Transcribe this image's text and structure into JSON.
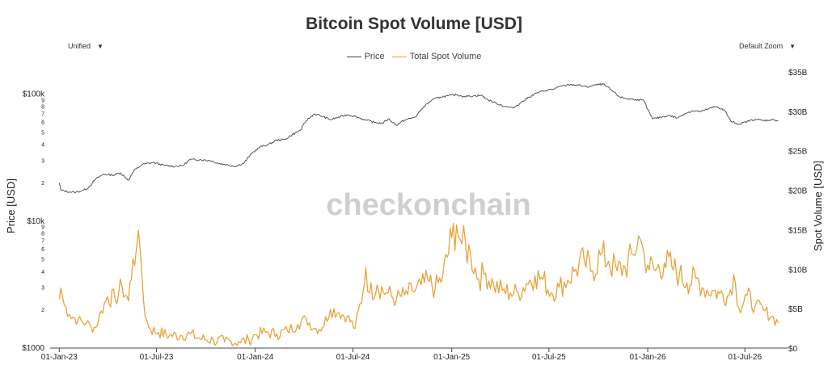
{
  "header": {
    "title": "Bitcoin Spot Volume [USD]",
    "left_dropdown": "Unified",
    "right_dropdown": "Default Zoom"
  },
  "watermark": "checkonchain",
  "colors": {
    "price": "#444444",
    "volume": "#e8a33a",
    "axis": "#444444"
  },
  "chart_data": {
    "type": "line",
    "title": "Bitcoin Spot Volume [USD]",
    "legend": {
      "placement": "top-center",
      "entries": [
        "Price",
        "Total Spot Volume"
      ]
    },
    "grid": false,
    "x_axis": {
      "type": "date",
      "range": [
        "2022-12-15",
        "2026-09-20"
      ],
      "tick_labels": [
        "01-Jan-23",
        "01-Jul-23",
        "01-Jan-24",
        "01-Jul-24",
        "01-Jan-25",
        "01-Jul-25",
        "01-Jan-26",
        "01-Jul-26"
      ],
      "tick_dates": [
        "2023-01-01",
        "2023-07-01",
        "2024-01-01",
        "2024-07-01",
        "2025-01-01",
        "2025-07-01",
        "2026-01-01",
        "2026-07-01"
      ]
    },
    "y_left": {
      "label": "Price [USD]",
      "scale": "log",
      "range": [
        1000,
        150000
      ],
      "major_ticks": [
        {
          "v": 1000,
          "t": "$1000"
        },
        {
          "v": 10000,
          "t": "$10k"
        },
        {
          "v": 100000,
          "t": "$100k"
        }
      ],
      "minor_ticks": [
        {
          "v": 2000,
          "t": "2"
        },
        {
          "v": 3000,
          "t": "3"
        },
        {
          "v": 4000,
          "t": "4"
        },
        {
          "v": 5000,
          "t": "5"
        },
        {
          "v": 6000,
          "t": "6"
        },
        {
          "v": 7000,
          "t": "7"
        },
        {
          "v": 8000,
          "t": "8"
        },
        {
          "v": 9000,
          "t": "9"
        },
        {
          "v": 20000,
          "t": "2"
        },
        {
          "v": 30000,
          "t": "3"
        },
        {
          "v": 40000,
          "t": "4"
        },
        {
          "v": 50000,
          "t": "5"
        },
        {
          "v": 60000,
          "t": "6"
        },
        {
          "v": 70000,
          "t": "7"
        },
        {
          "v": 80000,
          "t": "8"
        },
        {
          "v": 90000,
          "t": "9"
        }
      ]
    },
    "y_right": {
      "label": "Spot Volume [USD]",
      "scale": "linear",
      "range": [
        0,
        35
      ],
      "ticks": [
        {
          "v": 0,
          "t": "$0"
        },
        {
          "v": 5,
          "t": "$5B"
        },
        {
          "v": 10,
          "t": "$10B"
        },
        {
          "v": 15,
          "t": "$15B"
        },
        {
          "v": 20,
          "t": "$20B"
        },
        {
          "v": 25,
          "t": "$25B"
        },
        {
          "v": 30,
          "t": "$30B"
        },
        {
          "v": 35,
          "t": "$35B"
        }
      ]
    },
    "series": [
      {
        "name": "Price",
        "axis": "left",
        "unit": "USD",
        "points": [
          [
            "2023-01-01",
            20000
          ],
          [
            "2023-01-04",
            17500
          ],
          [
            "2023-01-20",
            17000
          ],
          [
            "2023-02-01",
            16900
          ],
          [
            "2023-02-15",
            17500
          ],
          [
            "2023-02-25",
            18500
          ],
          [
            "2023-03-10",
            21500
          ],
          [
            "2023-03-25",
            23500
          ],
          [
            "2023-04-10",
            23000
          ],
          [
            "2023-04-25",
            24000
          ],
          [
            "2023-05-10",
            21000
          ],
          [
            "2023-05-20",
            25000
          ],
          [
            "2023-06-05",
            28000
          ],
          [
            "2023-06-25",
            29000
          ],
          [
            "2023-07-15",
            27500
          ],
          [
            "2023-08-05",
            27000
          ],
          [
            "2023-08-20",
            27500
          ],
          [
            "2023-09-01",
            30500
          ],
          [
            "2023-09-20",
            30500
          ],
          [
            "2023-10-10",
            30000
          ],
          [
            "2023-10-25",
            28500
          ],
          [
            "2023-11-05",
            28000
          ],
          [
            "2023-11-25",
            27000
          ],
          [
            "2023-12-10",
            28500
          ],
          [
            "2023-12-25",
            34000
          ],
          [
            "2024-01-10",
            38500
          ],
          [
            "2024-01-25",
            40000
          ],
          [
            "2024-02-10",
            43500
          ],
          [
            "2024-02-25",
            44000
          ],
          [
            "2024-03-10",
            48000
          ],
          [
            "2024-03-25",
            52000
          ],
          [
            "2024-04-05",
            62000
          ],
          [
            "2024-04-20",
            70000
          ],
          [
            "2024-05-05",
            67000
          ],
          [
            "2024-05-20",
            63000
          ],
          [
            "2024-06-05",
            66000
          ],
          [
            "2024-06-20",
            69000
          ],
          [
            "2024-07-05",
            67000
          ],
          [
            "2024-07-25",
            62500
          ],
          [
            "2024-08-10",
            60000
          ],
          [
            "2024-08-25",
            59000
          ],
          [
            "2024-09-05",
            64000
          ],
          [
            "2024-09-20",
            57000
          ],
          [
            "2024-10-05",
            62500
          ],
          [
            "2024-10-25",
            66000
          ],
          [
            "2024-11-10",
            80000
          ],
          [
            "2024-11-25",
            90000
          ],
          [
            "2024-12-10",
            95000
          ],
          [
            "2024-12-25",
            97000
          ],
          [
            "2025-01-10",
            99000
          ],
          [
            "2025-01-25",
            96000
          ],
          [
            "2025-02-10",
            97000
          ],
          [
            "2025-02-25",
            98000
          ],
          [
            "2025-03-10",
            90000
          ],
          [
            "2025-03-25",
            85000
          ],
          [
            "2025-04-10",
            80000
          ],
          [
            "2025-04-25",
            78000
          ],
          [
            "2025-05-10",
            86000
          ],
          [
            "2025-05-25",
            95000
          ],
          [
            "2025-06-10",
            103000
          ],
          [
            "2025-06-25",
            107000
          ],
          [
            "2025-07-10",
            110000
          ],
          [
            "2025-07-25",
            116000
          ],
          [
            "2025-08-10",
            119000
          ],
          [
            "2025-08-25",
            118000
          ],
          [
            "2025-09-10",
            114000
          ],
          [
            "2025-09-25",
            118000
          ],
          [
            "2025-10-10",
            120000
          ],
          [
            "2025-10-25",
            108000
          ],
          [
            "2025-11-10",
            95000
          ],
          [
            "2025-11-25",
            92000
          ],
          [
            "2025-12-10",
            91000
          ],
          [
            "2025-12-25",
            89000
          ],
          [
            "2026-01-01",
            76000
          ],
          [
            "2026-01-10",
            64000
          ],
          [
            "2026-01-25",
            66000
          ],
          [
            "2026-02-10",
            68000
          ],
          [
            "2026-02-25",
            65000
          ],
          [
            "2026-03-10",
            70000
          ],
          [
            "2026-03-25",
            74000
          ],
          [
            "2026-04-10",
            73000
          ],
          [
            "2026-04-25",
            77000
          ],
          [
            "2026-05-10",
            80000
          ],
          [
            "2026-05-25",
            74000
          ],
          [
            "2026-06-05",
            61000
          ],
          [
            "2026-06-20",
            58000
          ],
          [
            "2026-07-05",
            61000
          ],
          [
            "2026-07-20",
            63500
          ],
          [
            "2026-08-05",
            62000
          ],
          [
            "2026-08-20",
            63000
          ],
          [
            "2026-09-01",
            62000
          ]
        ]
      },
      {
        "name": "Total Spot Volume",
        "axis": "right",
        "unit": "billion USD",
        "points": [
          [
            "2023-01-01",
            6.2
          ],
          [
            "2023-01-04",
            7.6
          ],
          [
            "2023-01-10",
            5.5
          ],
          [
            "2023-01-20",
            4.3
          ],
          [
            "2023-02-05",
            3.5
          ],
          [
            "2023-02-20",
            3.2
          ],
          [
            "2023-03-01",
            2.7
          ],
          [
            "2023-03-10",
            2.6
          ],
          [
            "2023-03-20",
            4.7
          ],
          [
            "2023-04-01",
            6.5
          ],
          [
            "2023-04-15",
            6.2
          ],
          [
            "2023-04-28",
            7.8
          ],
          [
            "2023-05-10",
            6.0
          ],
          [
            "2023-05-18",
            11.3
          ],
          [
            "2023-05-25",
            12.8
          ],
          [
            "2023-06-01",
            12.2
          ],
          [
            "2023-06-10",
            4.0
          ],
          [
            "2023-06-20",
            2.3
          ],
          [
            "2023-07-05",
            2.0
          ],
          [
            "2023-07-25",
            1.6
          ],
          [
            "2023-08-15",
            1.6
          ],
          [
            "2023-09-01",
            1.8
          ],
          [
            "2023-09-20",
            1.2
          ],
          [
            "2023-10-15",
            1.0
          ],
          [
            "2023-11-05",
            0.8
          ],
          [
            "2023-12-01",
            0.8
          ],
          [
            "2023-12-20",
            1.0
          ],
          [
            "2024-01-01",
            1.7
          ],
          [
            "2024-01-20",
            2.0
          ],
          [
            "2024-02-10",
            1.8
          ],
          [
            "2024-03-01",
            2.2
          ],
          [
            "2024-03-20",
            3.0
          ],
          [
            "2024-04-05",
            3.7
          ],
          [
            "2024-04-20",
            2.5
          ],
          [
            "2024-05-05",
            2.6
          ],
          [
            "2024-05-20",
            4.9
          ],
          [
            "2024-06-05",
            4.5
          ],
          [
            "2024-06-20",
            4.0
          ],
          [
            "2024-07-05",
            2.5
          ],
          [
            "2024-07-20",
            7.2
          ],
          [
            "2024-07-25",
            10.2
          ],
          [
            "2024-08-01",
            7.0
          ],
          [
            "2024-08-15",
            8.0
          ],
          [
            "2024-09-01",
            7.0
          ],
          [
            "2024-09-20",
            6.2
          ],
          [
            "2024-10-05",
            6.7
          ],
          [
            "2024-10-20",
            7.2
          ],
          [
            "2024-11-05",
            8.0
          ],
          [
            "2024-11-20",
            8.4
          ],
          [
            "2024-12-01",
            7.5
          ],
          [
            "2024-12-15",
            9.0
          ],
          [
            "2025-01-01",
            14.0
          ],
          [
            "2025-01-10",
            15.6
          ],
          [
            "2025-01-20",
            13.2
          ],
          [
            "2025-02-05",
            12.0
          ],
          [
            "2025-02-20",
            8.8
          ],
          [
            "2025-03-05",
            9.5
          ],
          [
            "2025-03-20",
            8.0
          ],
          [
            "2025-04-05",
            7.3
          ],
          [
            "2025-04-20",
            7.0
          ],
          [
            "2025-05-05",
            7.0
          ],
          [
            "2025-05-20",
            8.2
          ],
          [
            "2025-06-05",
            9.2
          ],
          [
            "2025-06-20",
            8.7
          ],
          [
            "2025-07-05",
            7.0
          ],
          [
            "2025-07-20",
            7.7
          ],
          [
            "2025-08-05",
            8.6
          ],
          [
            "2025-08-20",
            10.0
          ],
          [
            "2025-09-05",
            11.0
          ],
          [
            "2025-09-20",
            9.8
          ],
          [
            "2025-10-05",
            11.8
          ],
          [
            "2025-10-20",
            11.0
          ],
          [
            "2025-11-05",
            9.8
          ],
          [
            "2025-11-20",
            10.2
          ],
          [
            "2025-12-05",
            11.8
          ],
          [
            "2025-12-15",
            14.2
          ],
          [
            "2025-12-25",
            12.0
          ],
          [
            "2026-01-01",
            10.5
          ],
          [
            "2026-01-15",
            9.8
          ],
          [
            "2026-02-01",
            10.8
          ],
          [
            "2026-02-15",
            10.3
          ],
          [
            "2026-03-01",
            9.3
          ],
          [
            "2026-03-15",
            8.3
          ],
          [
            "2026-04-01",
            8.8
          ],
          [
            "2026-04-15",
            7.5
          ],
          [
            "2026-05-01",
            7.3
          ],
          [
            "2026-05-15",
            6.9
          ],
          [
            "2026-06-01",
            6.6
          ],
          [
            "2026-06-10",
            9.3
          ],
          [
            "2026-06-20",
            5.0
          ],
          [
            "2026-07-05",
            6.7
          ],
          [
            "2026-07-20",
            5.3
          ],
          [
            "2026-08-05",
            4.8
          ],
          [
            "2026-08-20",
            4.0
          ],
          [
            "2026-09-01",
            3.2
          ]
        ]
      }
    ]
  }
}
